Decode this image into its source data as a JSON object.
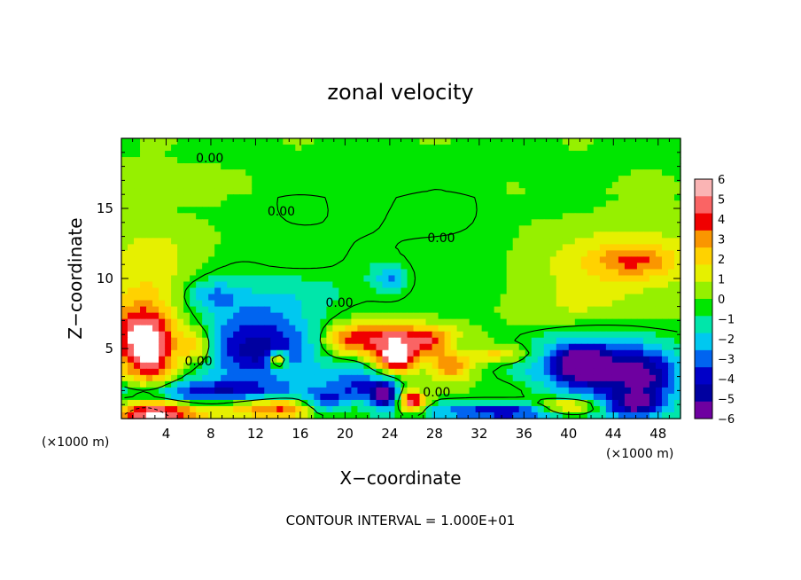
{
  "chart_data": {
    "type": "heatmap",
    "title": "zonal velocity",
    "xlabel": "X−coordinate",
    "ylabel": "Z−coordinate",
    "x_unit_left": "(×1000 m)",
    "x_unit_right": "(×1000 m)",
    "footer": "CONTOUR INTERVAL = 1.000E+01",
    "xlim": [
      0,
      50
    ],
    "ylim": [
      0,
      20
    ],
    "x_ticks": [
      4,
      8,
      12,
      16,
      20,
      24,
      28,
      32,
      36,
      40,
      44,
      48
    ],
    "y_ticks": [
      5,
      10,
      15
    ],
    "contour_labels": [
      {
        "text": "0.00",
        "x": 7.9,
        "y": 18.6
      },
      {
        "text": "0.00",
        "x": 14.3,
        "y": 14.8
      },
      {
        "text": "0.00",
        "x": 28.6,
        "y": 12.9
      },
      {
        "text": "0.00",
        "x": 19.5,
        "y": 8.3
      },
      {
        "text": "0.00",
        "x": 6.9,
        "y": 4.1
      },
      {
        "text": "0.00",
        "x": 28.2,
        "y": 1.9
      }
    ],
    "colorbar": {
      "min": -6,
      "max": 6,
      "labels": [
        "6",
        "5",
        "4",
        "3",
        "2",
        "1",
        "0",
        "−1",
        "−2",
        "−3",
        "−4",
        "−5",
        "−6"
      ],
      "colors": [
        "#fab4b4",
        "#fa6464",
        "#f00000",
        "#fa9600",
        "#ffd200",
        "#e6f000",
        "#96f000",
        "#00e600",
        "#00e6aa",
        "#00c8f0",
        "#0064f0",
        "#0000c8",
        "#0000a0",
        "#6e00a0"
      ]
    },
    "field_blobs": [
      {
        "x": 44.5,
        "y": 11.0,
        "rx": 9.0,
        "ry": 3.5,
        "v": 1.8
      },
      {
        "x": 46.0,
        "y": 11.3,
        "rx": 3.5,
        "ry": 1.2,
        "v": 2.8
      },
      {
        "x": 2.0,
        "y": 10.0,
        "rx": 4.0,
        "ry": 4.0,
        "v": 1.8
      },
      {
        "x": 2.5,
        "y": 16.5,
        "rx": 6.0,
        "ry": 1.5,
        "v": 0.6
      },
      {
        "x": 28.0,
        "y": 14.5,
        "rx": 10.0,
        "ry": 2.5,
        "v": -0.3
      },
      {
        "x": 12.0,
        "y": 7.5,
        "rx": 4.5,
        "ry": 2.0,
        "v": -1.6
      },
      {
        "x": 8.0,
        "y": 8.8,
        "rx": 2.5,
        "ry": 1.0,
        "v": -2.2
      },
      {
        "x": 24.0,
        "y": 10.0,
        "rx": 1.5,
        "ry": 1.0,
        "v": -2.4
      },
      {
        "x": 16.0,
        "y": 9.0,
        "rx": 4.0,
        "ry": 1.5,
        "v": -1.0
      },
      {
        "x": 2.5,
        "y": 4.5,
        "rx": 2.5,
        "ry": 2.5,
        "v": 5.5
      },
      {
        "x": 1.5,
        "y": 6.3,
        "rx": 3.0,
        "ry": 2.0,
        "v": 3.2
      },
      {
        "x": 12.0,
        "y": 4.8,
        "rx": 5.0,
        "ry": 2.2,
        "v": -4.6
      },
      {
        "x": 14.0,
        "y": 4.2,
        "rx": 0.8,
        "ry": 0.6,
        "v": 6.0
      },
      {
        "x": 6.7,
        "y": 5.2,
        "rx": 1.5,
        "ry": 1.2,
        "v": 3.5
      },
      {
        "x": 23.5,
        "y": 5.8,
        "rx": 3.5,
        "ry": 1.2,
        "v": 4.4
      },
      {
        "x": 24.5,
        "y": 4.2,
        "rx": 2.0,
        "ry": 1.0,
        "v": 6.0
      },
      {
        "x": 20.0,
        "y": 5.5,
        "rx": 2.0,
        "ry": 1.0,
        "v": 3.0
      },
      {
        "x": 29.5,
        "y": 3.8,
        "rx": 2.0,
        "ry": 1.2,
        "v": 3.8
      },
      {
        "x": 28.0,
        "y": 5.6,
        "rx": 3.0,
        "ry": 1.0,
        "v": 4.0
      },
      {
        "x": 21.0,
        "y": 2.5,
        "rx": 3.0,
        "ry": 1.6,
        "v": -3.0
      },
      {
        "x": 23.5,
        "y": 1.7,
        "rx": 1.2,
        "ry": 0.9,
        "v": -5.8
      },
      {
        "x": 26.0,
        "y": 1.2,
        "rx": 1.2,
        "ry": 0.8,
        "v": 5.8
      },
      {
        "x": 34.0,
        "y": 4.6,
        "rx": 3.0,
        "ry": 0.6,
        "v": 2.5
      },
      {
        "x": 30.0,
        "y": 5.2,
        "rx": 1.5,
        "ry": 0.8,
        "v": -2.0
      },
      {
        "x": 42.0,
        "y": 3.5,
        "rx": 6.0,
        "ry": 2.5,
        "v": -4.6
      },
      {
        "x": 41.3,
        "y": 3.9,
        "rx": 1.8,
        "ry": 0.9,
        "v": -6.2
      },
      {
        "x": 47.0,
        "y": 3.0,
        "rx": 3.0,
        "ry": 2.0,
        "v": -3.5
      },
      {
        "x": 8.0,
        "y": 1.8,
        "rx": 9.0,
        "ry": 0.9,
        "v": -4.2
      },
      {
        "x": 14.0,
        "y": 0.8,
        "rx": 6.0,
        "ry": 0.8,
        "v": 4.8
      },
      {
        "x": 3.0,
        "y": 0.3,
        "rx": 4.0,
        "ry": 1.0,
        "v": 5.8
      },
      {
        "x": 34.0,
        "y": 0.5,
        "rx": 8.0,
        "ry": 0.6,
        "v": -4.0
      },
      {
        "x": 40.0,
        "y": 0.8,
        "rx": 3.0,
        "ry": 0.6,
        "v": 4.8
      },
      {
        "x": 36.0,
        "y": 2.0,
        "rx": 4.0,
        "ry": 1.2,
        "v": 1.0
      },
      {
        "x": 18.0,
        "y": 1.0,
        "rx": 2.0,
        "ry": 0.8,
        "v": -4.5
      },
      {
        "x": 46.0,
        "y": 1.0,
        "rx": 2.5,
        "ry": 0.8,
        "v": -3.8
      },
      {
        "x": 6.0,
        "y": 12.5,
        "rx": 4.0,
        "ry": 1.5,
        "v": 0.5
      },
      {
        "x": 40.0,
        "y": 7.5,
        "rx": 5.0,
        "ry": 1.5,
        "v": 0.9
      }
    ]
  }
}
